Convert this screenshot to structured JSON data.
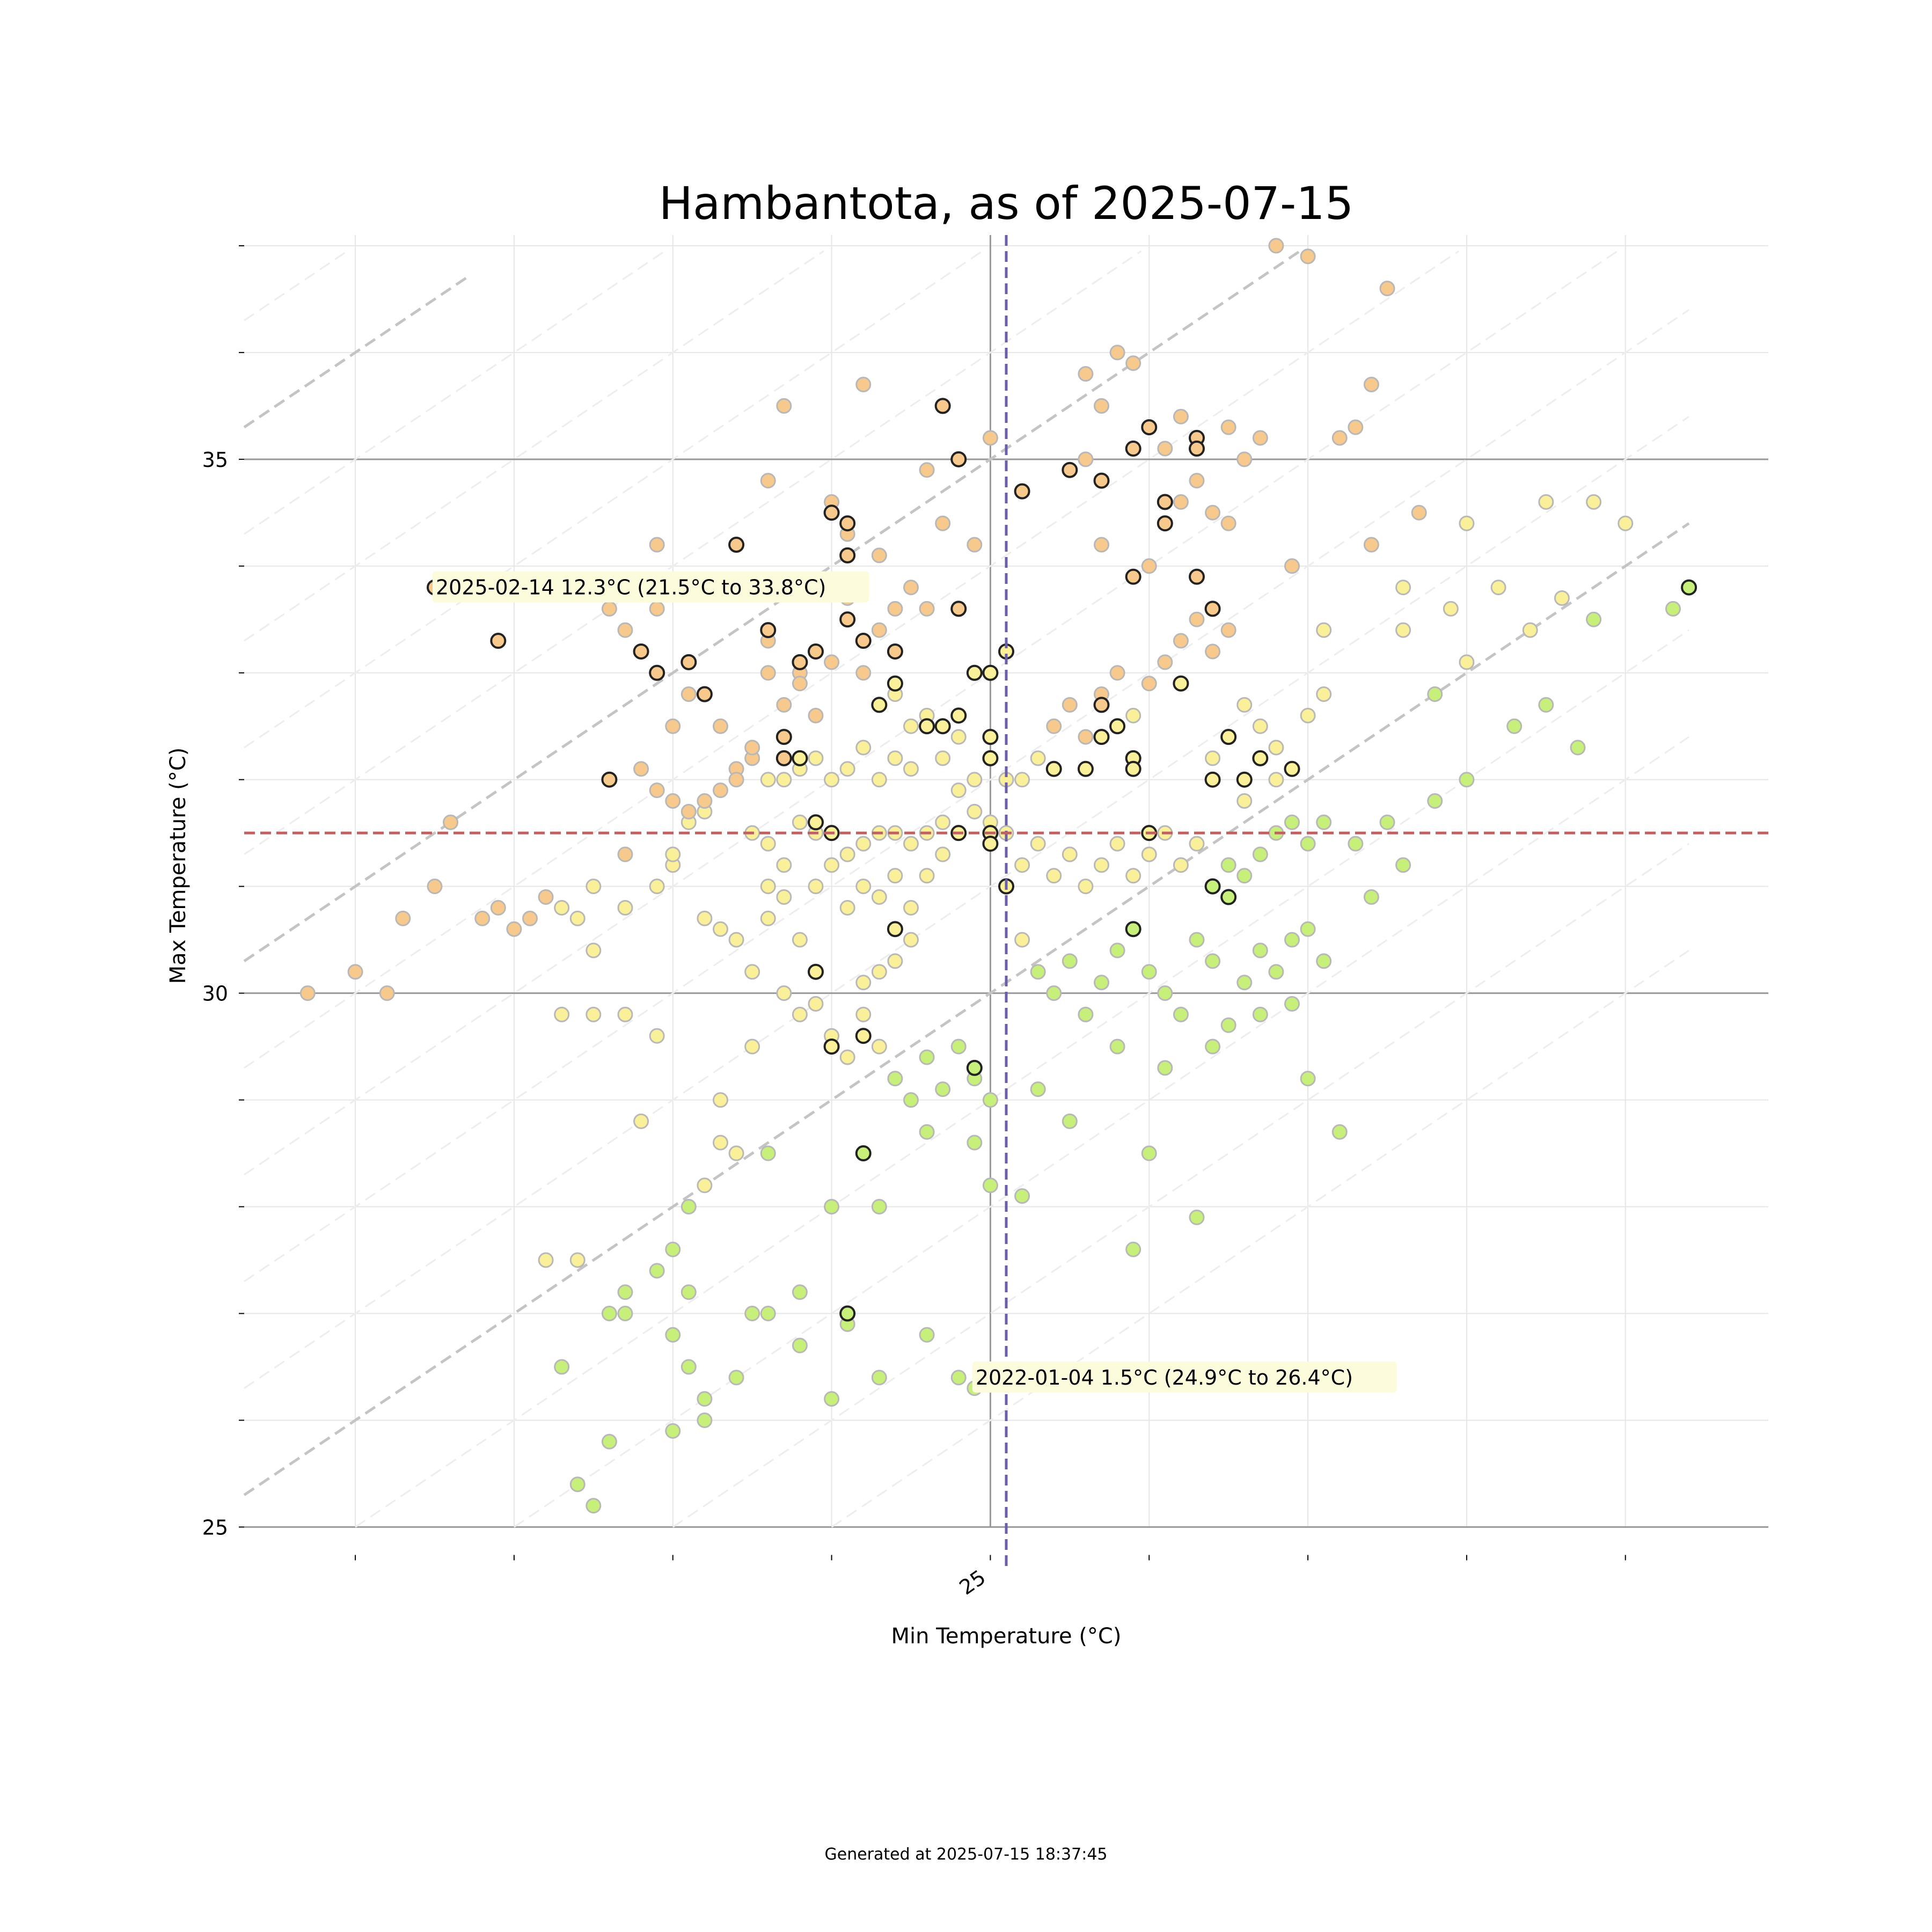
{
  "chart_data": {
    "type": "scatter",
    "title": "Hambantota, as of 2025-07-15",
    "xlabel": "Min Temperature (°C)",
    "ylabel": "Max Temperature (°C)",
    "xlim": [
      20.3,
      29.9
    ],
    "ylim": [
      24.6,
      37.1
    ],
    "x_tick_labels": [
      {
        "value": 25,
        "label": "25"
      }
    ],
    "x_minor_ticks": [
      21,
      22,
      23,
      24,
      25,
      26,
      27,
      28,
      29
    ],
    "y_tick_labels": [
      {
        "value": 25,
        "label": "25"
      },
      {
        "value": 30,
        "label": "30"
      },
      {
        "value": 35,
        "label": "35"
      }
    ],
    "y_minor_ticks": [
      25,
      26,
      27,
      28,
      29,
      30,
      31,
      32,
      33,
      34,
      35,
      36,
      37
    ],
    "mean_min_line": 25.1,
    "mean_max_line": 31.5,
    "diagonal_offsets": [
      5,
      10,
      15
    ],
    "colors": {
      "low_range": "#c6f07a",
      "mid_range": "#fbf09a",
      "high_range": "#f7c98d",
      "point_edge": "#b8b8b8",
      "highlight_edge": "#222222",
      "mean_min_line": "#6a5fa8",
      "mean_max_line": "#c06060",
      "annotation_bg": "#fcfbdc"
    },
    "annotations": [
      {
        "text": "2025-02-14 12.3°C (21.5°C to 33.8°C)",
        "x": 21.5,
        "y": 33.8
      },
      {
        "text": "2022-01-04 1.5°C (24.9°C to 26.4°C)",
        "x": 24.9,
        "y": 26.4
      }
    ],
    "points": [
      [
        21.5,
        33.8
      ],
      [
        21.6,
        31.6
      ],
      [
        21.5,
        31.0
      ],
      [
        21.3,
        30.7
      ],
      [
        20.7,
        30.0
      ],
      [
        21.0,
        30.2
      ],
      [
        21.2,
        30.0
      ],
      [
        21.9,
        30.8
      ],
      [
        21.8,
        30.7
      ],
      [
        22.0,
        30.6
      ],
      [
        22.1,
        30.7
      ],
      [
        22.2,
        30.9
      ],
      [
        22.3,
        30.8
      ],
      [
        22.4,
        30.7
      ],
      [
        22.5,
        30.4
      ],
      [
        22.5,
        31.0
      ],
      [
        22.7,
        31.3
      ],
      [
        22.7,
        30.8
      ],
      [
        22.9,
        31.0
      ],
      [
        23.0,
        31.2
      ],
      [
        22.6,
        33.6
      ],
      [
        22.7,
        33.4
      ],
      [
        22.9,
        33.6
      ],
      [
        22.9,
        34.2
      ],
      [
        22.8,
        32.1
      ],
      [
        22.9,
        31.9
      ],
      [
        23.0,
        31.8
      ],
      [
        23.1,
        31.6
      ],
      [
        23.2,
        31.7
      ],
      [
        23.2,
        30.7
      ],
      [
        23.3,
        30.6
      ],
      [
        23.4,
        30.5
      ],
      [
        23.5,
        30.2
      ],
      [
        23.6,
        30.7
      ],
      [
        22.9,
        29.6
      ],
      [
        22.7,
        29.8
      ],
      [
        22.8,
        28.8
      ],
      [
        22.6,
        27.0
      ],
      [
        22.7,
        27.0
      ],
      [
        22.5,
        29.8
      ],
      [
        22.3,
        29.8
      ],
      [
        23.0,
        32.5
      ],
      [
        23.1,
        32.8
      ],
      [
        23.3,
        32.5
      ],
      [
        23.4,
        32.1
      ],
      [
        23.5,
        32.2
      ],
      [
        23.6,
        31.4
      ],
      [
        23.7,
        30.9
      ],
      [
        23.8,
        30.5
      ],
      [
        23.9,
        31.0
      ],
      [
        24.0,
        31.2
      ],
      [
        24.1,
        30.8
      ],
      [
        24.2,
        31.0
      ],
      [
        24.3,
        30.9
      ],
      [
        24.4,
        31.1
      ],
      [
        24.5,
        30.8
      ],
      [
        23.5,
        31.5
      ],
      [
        23.6,
        31.0
      ],
      [
        23.7,
        31.2
      ],
      [
        23.8,
        31.6
      ],
      [
        23.9,
        31.5
      ],
      [
        24.0,
        31.5
      ],
      [
        24.1,
        31.3
      ],
      [
        24.2,
        31.4
      ],
      [
        24.3,
        31.5
      ],
      [
        24.4,
        31.5
      ],
      [
        24.5,
        31.4
      ],
      [
        24.6,
        31.5
      ],
      [
        24.7,
        31.6
      ],
      [
        24.8,
        31.5
      ],
      [
        23.6,
        32.0
      ],
      [
        23.7,
        32.0
      ],
      [
        23.8,
        32.1
      ],
      [
        23.9,
        32.2
      ],
      [
        24.0,
        32.0
      ],
      [
        24.1,
        32.1
      ],
      [
        24.2,
        32.3
      ],
      [
        24.3,
        32.0
      ],
      [
        24.4,
        32.2
      ],
      [
        24.5,
        32.1
      ],
      [
        23.6,
        33.3
      ],
      [
        23.8,
        33.0
      ],
      [
        24.0,
        33.1
      ],
      [
        24.2,
        33.0
      ],
      [
        24.4,
        32.8
      ],
      [
        24.6,
        32.6
      ],
      [
        24.8,
        32.4
      ],
      [
        25.0,
        32.2
      ],
      [
        25.1,
        32.0
      ],
      [
        24.0,
        34.5
      ],
      [
        24.3,
        34.1
      ],
      [
        24.5,
        33.8
      ],
      [
        24.7,
        34.4
      ],
      [
        24.9,
        34.2
      ],
      [
        25.0,
        35.2
      ],
      [
        24.8,
        35.0
      ],
      [
        24.6,
        34.9
      ],
      [
        24.2,
        35.7
      ],
      [
        23.6,
        34.8
      ],
      [
        24.0,
        34.6
      ],
      [
        23.7,
        35.5
      ],
      [
        24.1,
        34.3
      ],
      [
        24.4,
        33.6
      ],
      [
        24.6,
        33.6
      ],
      [
        24.3,
        33.4
      ],
      [
        24.1,
        33.7
      ],
      [
        23.9,
        33.2
      ],
      [
        24.5,
        32.5
      ],
      [
        24.7,
        32.2
      ],
      [
        24.9,
        32.0
      ],
      [
        23.7,
        30.0
      ],
      [
        23.8,
        29.8
      ],
      [
        23.9,
        29.9
      ],
      [
        24.0,
        29.6
      ],
      [
        24.1,
        29.4
      ],
      [
        24.2,
        29.8
      ],
      [
        24.3,
        29.5
      ],
      [
        24.4,
        29.2
      ],
      [
        24.5,
        29.0
      ],
      [
        24.6,
        29.4
      ],
      [
        24.7,
        29.1
      ],
      [
        24.8,
        29.5
      ],
      [
        24.9,
        29.2
      ],
      [
        25.0,
        29.0
      ],
      [
        23.5,
        29.5
      ],
      [
        23.3,
        29.0
      ],
      [
        23.4,
        28.5
      ],
      [
        23.2,
        28.2
      ],
      [
        23.1,
        28.0
      ],
      [
        23.0,
        27.6
      ],
      [
        23.1,
        27.2
      ],
      [
        23.0,
        26.8
      ],
      [
        23.1,
        26.5
      ],
      [
        23.2,
        26.2
      ],
      [
        23.4,
        26.4
      ],
      [
        23.6,
        27.0
      ],
      [
        23.8,
        27.2
      ],
      [
        24.0,
        28.0
      ],
      [
        24.3,
        28.0
      ],
      [
        24.6,
        28.7
      ],
      [
        24.8,
        26.4
      ],
      [
        24.9,
        26.3
      ],
      [
        24.6,
        26.8
      ],
      [
        24.3,
        26.4
      ],
      [
        24.0,
        26.2
      ],
      [
        23.2,
        26.0
      ],
      [
        23.0,
        25.9
      ],
      [
        22.6,
        25.8
      ],
      [
        22.4,
        25.4
      ],
      [
        22.5,
        25.2
      ],
      [
        22.3,
        26.5
      ],
      [
        22.2,
        27.5
      ],
      [
        22.4,
        27.5
      ],
      [
        22.7,
        27.2
      ],
      [
        22.9,
        27.4
      ],
      [
        23.5,
        27.0
      ],
      [
        23.8,
        26.7
      ],
      [
        24.1,
        26.9
      ],
      [
        23.6,
        28.5
      ],
      [
        23.3,
        28.6
      ],
      [
        25.1,
        31.0
      ],
      [
        25.2,
        31.2
      ],
      [
        25.3,
        31.4
      ],
      [
        25.4,
        31.1
      ],
      [
        25.5,
        31.3
      ],
      [
        25.6,
        31.0
      ],
      [
        25.7,
        31.2
      ],
      [
        25.8,
        31.4
      ],
      [
        25.9,
        31.1
      ],
      [
        26.0,
        31.3
      ],
      [
        26.1,
        31.5
      ],
      [
        26.2,
        31.2
      ],
      [
        26.3,
        31.4
      ],
      [
        26.4,
        31.0
      ],
      [
        26.5,
        31.2
      ],
      [
        26.6,
        31.1
      ],
      [
        26.7,
        31.3
      ],
      [
        26.8,
        31.5
      ],
      [
        26.9,
        31.6
      ],
      [
        27.0,
        31.4
      ],
      [
        25.2,
        32.0
      ],
      [
        25.3,
        32.2
      ],
      [
        25.4,
        32.5
      ],
      [
        25.5,
        32.7
      ],
      [
        25.6,
        32.4
      ],
      [
        25.7,
        32.8
      ],
      [
        25.8,
        33.0
      ],
      [
        25.9,
        32.6
      ],
      [
        26.0,
        32.9
      ],
      [
        26.1,
        33.1
      ],
      [
        26.2,
        33.3
      ],
      [
        26.3,
        33.5
      ],
      [
        26.4,
        33.2
      ],
      [
        26.5,
        33.4
      ],
      [
        26.6,
        32.7
      ],
      [
        26.7,
        32.5
      ],
      [
        26.8,
        32.3
      ],
      [
        26.9,
        32.1
      ],
      [
        27.0,
        32.6
      ],
      [
        27.1,
        32.8
      ],
      [
        25.2,
        30.5
      ],
      [
        25.3,
        30.2
      ],
      [
        25.4,
        30.0
      ],
      [
        25.5,
        30.3
      ],
      [
        25.6,
        29.8
      ],
      [
        25.7,
        30.1
      ],
      [
        25.8,
        30.4
      ],
      [
        25.9,
        30.6
      ],
      [
        26.0,
        30.2
      ],
      [
        26.1,
        30.0
      ],
      [
        26.2,
        29.8
      ],
      [
        26.3,
        30.5
      ],
      [
        26.4,
        30.3
      ],
      [
        26.5,
        29.7
      ],
      [
        26.6,
        30.1
      ],
      [
        26.7,
        30.4
      ],
      [
        26.8,
        30.2
      ],
      [
        26.9,
        29.9
      ],
      [
        27.0,
        30.6
      ],
      [
        27.1,
        30.3
      ],
      [
        25.6,
        35.0
      ],
      [
        25.7,
        35.5
      ],
      [
        25.8,
        36.0
      ],
      [
        25.9,
        35.9
      ],
      [
        25.6,
        35.8
      ],
      [
        26.0,
        35.3
      ],
      [
        26.1,
        35.1
      ],
      [
        26.2,
        35.4
      ],
      [
        26.3,
        35.2
      ],
      [
        26.5,
        35.3
      ],
      [
        26.7,
        35.2
      ],
      [
        26.8,
        37.0
      ],
      [
        27.0,
        36.9
      ],
      [
        27.2,
        35.2
      ],
      [
        27.4,
        35.7
      ],
      [
        27.3,
        35.3
      ],
      [
        27.5,
        36.6
      ],
      [
        27.7,
        34.5
      ],
      [
        28.0,
        34.4
      ],
      [
        28.5,
        34.6
      ],
      [
        28.8,
        34.6
      ],
      [
        29.0,
        34.4
      ],
      [
        29.3,
        33.6
      ],
      [
        28.2,
        33.8
      ],
      [
        28.4,
        33.4
      ],
      [
        28.6,
        33.7
      ],
      [
        28.8,
        33.5
      ],
      [
        27.9,
        33.6
      ],
      [
        27.6,
        33.8
      ],
      [
        27.4,
        34.2
      ],
      [
        26.9,
        34.0
      ],
      [
        26.5,
        34.4
      ],
      [
        26.2,
        34.6
      ],
      [
        27.1,
        33.4
      ],
      [
        26.4,
        32.2
      ],
      [
        26.6,
        31.8
      ],
      [
        26.8,
        32.0
      ],
      [
        27.1,
        31.6
      ],
      [
        27.5,
        31.6
      ],
      [
        27.8,
        31.8
      ],
      [
        28.3,
        32.5
      ],
      [
        28.5,
        32.7
      ],
      [
        28.7,
        32.3
      ],
      [
        28.0,
        32.0
      ],
      [
        27.3,
        31.4
      ],
      [
        27.6,
        31.2
      ],
      [
        27.4,
        30.9
      ],
      [
        26.9,
        30.5
      ],
      [
        26.7,
        29.8
      ],
      [
        26.4,
        29.5
      ],
      [
        26.1,
        29.3
      ],
      [
        25.8,
        29.5
      ],
      [
        25.3,
        29.1
      ],
      [
        25.5,
        28.8
      ],
      [
        26.0,
        28.5
      ],
      [
        27.0,
        29.2
      ],
      [
        27.2,
        28.7
      ],
      [
        26.3,
        27.9
      ],
      [
        25.9,
        27.6
      ],
      [
        25.2,
        28.1
      ],
      [
        25.0,
        28.2
      ],
      [
        24.9,
        28.6
      ],
      [
        27.6,
        33.4
      ],
      [
        27.8,
        32.8
      ],
      [
        28.0,
        33.1
      ],
      [
        26.3,
        34.8
      ],
      [
        26.6,
        35.0
      ],
      [
        26.4,
        34.5
      ],
      [
        26.0,
        34.0
      ],
      [
        25.7,
        34.2
      ],
      [
        24.9,
        31.7
      ],
      [
        25.0,
        31.6
      ],
      [
        25.1,
        31.5
      ],
      [
        24.8,
        31.9
      ],
      [
        24.7,
        31.3
      ],
      [
        24.6,
        31.1
      ],
      [
        24.5,
        30.5
      ],
      [
        24.4,
        30.3
      ],
      [
        24.3,
        30.2
      ],
      [
        24.2,
        30.1
      ],
      [
        23.9,
        32.6
      ],
      [
        23.8,
        32.9
      ],
      [
        23.7,
        32.7
      ],
      [
        23.6,
        33.0
      ],
      [
        23.5,
        32.3
      ],
      [
        23.4,
        32.0
      ],
      [
        23.3,
        31.9
      ],
      [
        23.2,
        31.8
      ],
      [
        23.1,
        31.7
      ],
      [
        23.0,
        31.3
      ]
    ],
    "highlights": [
      [
        21.5,
        33.8
      ],
      [
        21.9,
        33.3
      ],
      [
        22.6,
        32.0
      ],
      [
        22.8,
        33.2
      ],
      [
        22.9,
        33.0
      ],
      [
        23.1,
        33.1
      ],
      [
        23.2,
        32.8
      ],
      [
        23.4,
        34.2
      ],
      [
        23.6,
        33.4
      ],
      [
        23.7,
        32.2
      ],
      [
        23.8,
        33.1
      ],
      [
        23.9,
        33.2
      ],
      [
        23.7,
        32.4
      ],
      [
        23.8,
        32.2
      ],
      [
        23.9,
        31.6
      ],
      [
        24.0,
        31.5
      ],
      [
        23.9,
        30.2
      ],
      [
        24.0,
        34.5
      ],
      [
        24.1,
        34.4
      ],
      [
        24.1,
        34.1
      ],
      [
        24.1,
        33.5
      ],
      [
        24.2,
        33.3
      ],
      [
        24.4,
        33.2
      ],
      [
        24.4,
        32.9
      ],
      [
        24.3,
        32.7
      ],
      [
        24.4,
        30.6
      ],
      [
        24.6,
        32.5
      ],
      [
        24.7,
        32.5
      ],
      [
        24.8,
        32.6
      ],
      [
        24.2,
        28.5
      ],
      [
        24.1,
        27.0
      ],
      [
        24.0,
        29.5
      ],
      [
        24.2,
        29.6
      ],
      [
        24.8,
        33.6
      ],
      [
        24.8,
        35.0
      ],
      [
        24.7,
        35.5
      ],
      [
        24.9,
        33.0
      ],
      [
        25.0,
        33.0
      ],
      [
        25.1,
        33.2
      ],
      [
        25.0,
        32.4
      ],
      [
        25.0,
        32.2
      ],
      [
        25.0,
        31.5
      ],
      [
        25.0,
        31.4
      ],
      [
        25.1,
        31.0
      ],
      [
        24.9,
        29.3
      ],
      [
        24.8,
        31.5
      ],
      [
        25.2,
        34.7
      ],
      [
        25.4,
        32.1
      ],
      [
        25.5,
        34.9
      ],
      [
        25.7,
        34.8
      ],
      [
        25.7,
        32.4
      ],
      [
        25.6,
        32.1
      ],
      [
        25.9,
        32.2
      ],
      [
        25.9,
        32.1
      ],
      [
        25.9,
        35.1
      ],
      [
        26.0,
        35.3
      ],
      [
        26.1,
        34.6
      ],
      [
        26.1,
        34.4
      ],
      [
        26.2,
        32.9
      ],
      [
        26.3,
        35.2
      ],
      [
        26.3,
        35.1
      ],
      [
        26.3,
        33.9
      ],
      [
        26.4,
        33.6
      ],
      [
        26.5,
        32.4
      ],
      [
        26.4,
        32.0
      ],
      [
        26.6,
        32.0
      ],
      [
        26.7,
        32.2
      ],
      [
        26.9,
        32.1
      ],
      [
        26.4,
        31.0
      ],
      [
        26.5,
        30.9
      ],
      [
        26.0,
        31.5
      ],
      [
        25.9,
        30.6
      ],
      [
        25.9,
        33.9
      ],
      [
        25.7,
        32.7
      ],
      [
        25.8,
        32.5
      ],
      [
        29.4,
        33.8
      ]
    ]
  },
  "footer": "Generated at 2025-07-15 18:37:45"
}
